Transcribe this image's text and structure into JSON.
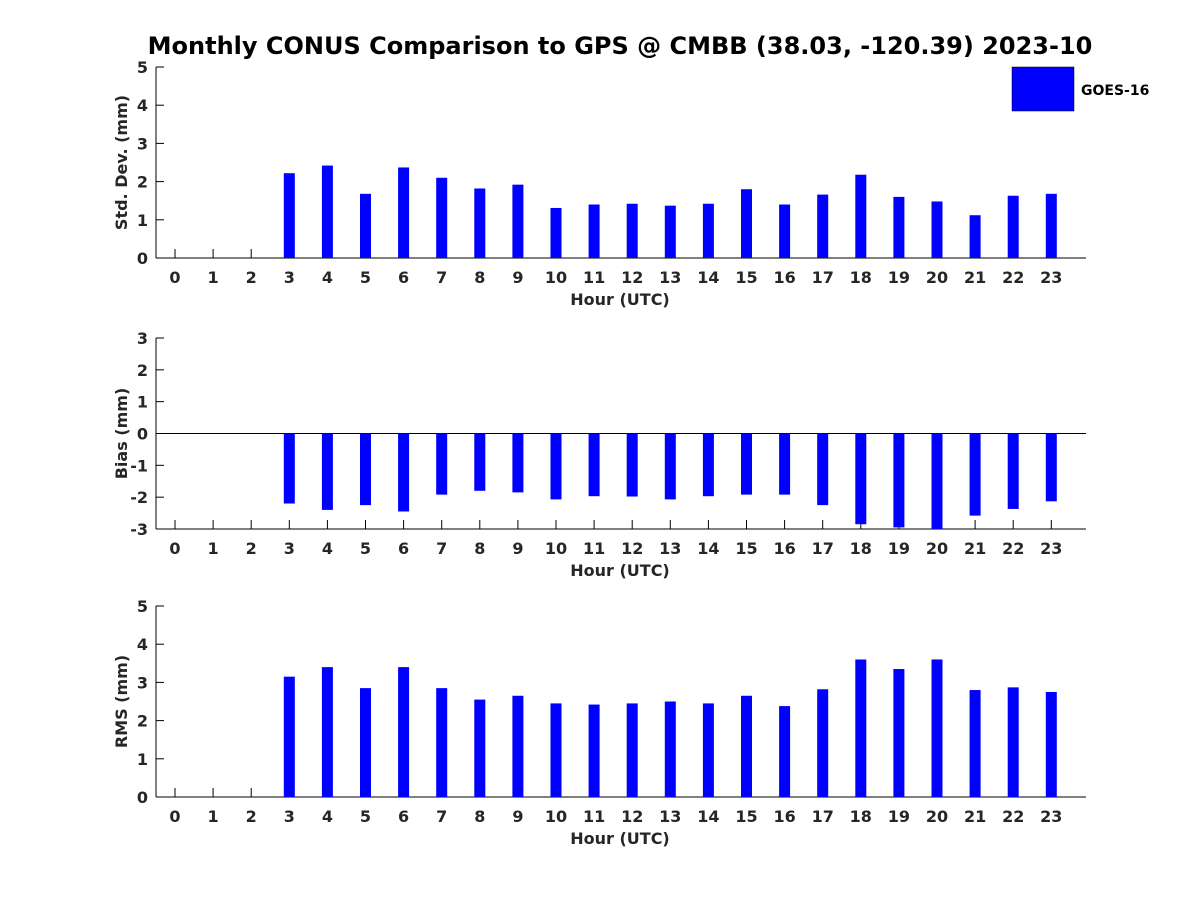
{
  "chart_data": {
    "type": "bar",
    "title": "Monthly CONUS Comparison to GPS @ CMBB (38.03, -120.39) 2023-10",
    "legend": {
      "label": "GOES-16",
      "placement": "top-right"
    },
    "colors": {
      "bar": "#0000ff",
      "axis": "#000000",
      "text": "#262626"
    },
    "categories": [
      "0",
      "1",
      "2",
      "3",
      "4",
      "5",
      "6",
      "7",
      "8",
      "9",
      "10",
      "11",
      "12",
      "13",
      "14",
      "15",
      "16",
      "17",
      "18",
      "19",
      "20",
      "21",
      "22",
      "23"
    ],
    "panels": [
      {
        "id": "stddev",
        "ylabel": "Std. Dev. (mm)",
        "xlabel": "Hour (UTC)",
        "ylim": [
          0,
          5
        ],
        "yticks": [
          "0",
          "1",
          "2",
          "3",
          "4",
          "5"
        ],
        "values": [
          null,
          null,
          null,
          2.22,
          2.42,
          1.68,
          2.37,
          2.1,
          1.82,
          1.92,
          1.31,
          1.4,
          1.42,
          1.37,
          1.42,
          1.8,
          1.4,
          1.66,
          2.18,
          1.6,
          1.48,
          1.12,
          1.63,
          1.68
        ]
      },
      {
        "id": "bias",
        "ylabel": "Bias (mm)",
        "xlabel": "Hour (UTC)",
        "ylim": [
          -3,
          3
        ],
        "yticks": [
          "-3",
          "-2",
          "-1",
          "0",
          "1",
          "2",
          "3"
        ],
        "zero_line": true,
        "values": [
          null,
          null,
          null,
          -2.2,
          -2.4,
          -2.25,
          -2.45,
          -1.92,
          -1.8,
          -1.85,
          -2.07,
          -1.97,
          -1.98,
          -2.07,
          -1.97,
          -1.92,
          -1.92,
          -2.25,
          -2.85,
          -2.95,
          -3.0,
          -2.58,
          -2.37,
          -2.13
        ]
      },
      {
        "id": "rms",
        "ylabel": "RMS (mm)",
        "xlabel": "Hour (UTC)",
        "ylim": [
          0,
          5
        ],
        "yticks": [
          "0",
          "1",
          "2",
          "3",
          "4",
          "5"
        ],
        "values": [
          null,
          null,
          null,
          3.15,
          3.4,
          2.85,
          3.4,
          2.85,
          2.55,
          2.65,
          2.45,
          2.42,
          2.45,
          2.5,
          2.45,
          2.65,
          2.38,
          2.82,
          3.6,
          3.35,
          3.6,
          2.8,
          2.87,
          2.75
        ]
      }
    ]
  }
}
